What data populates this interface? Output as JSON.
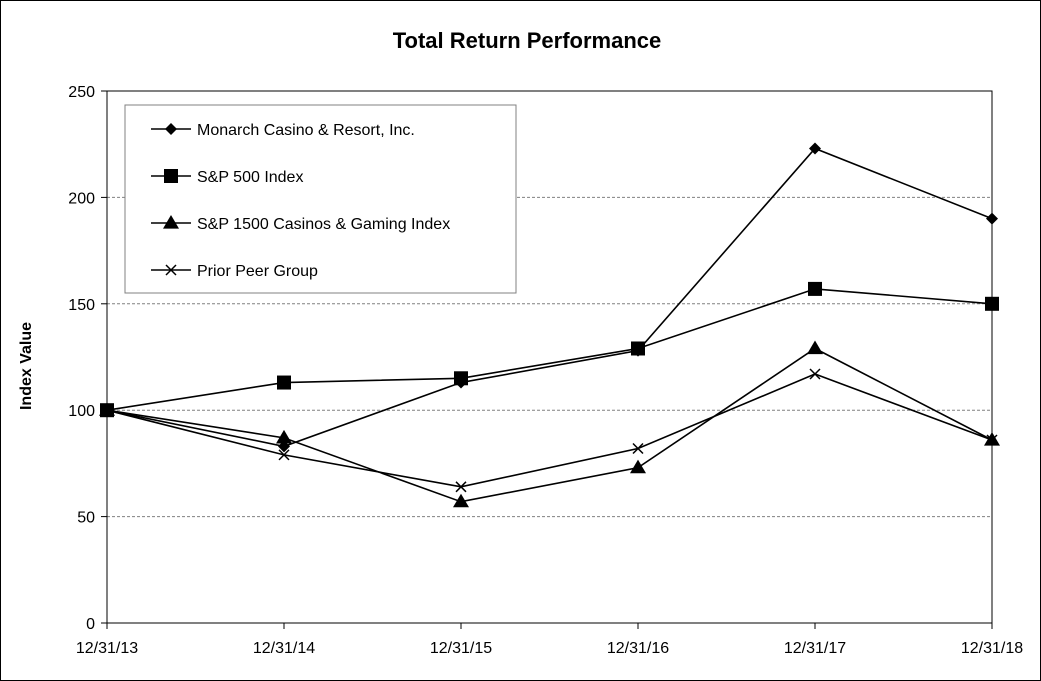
{
  "chart_data": {
    "type": "line",
    "title": "Total Return Performance",
    "xlabel": "",
    "ylabel": "Index Value",
    "x": [
      "12/31/13",
      "12/31/14",
      "12/31/15",
      "12/31/16",
      "12/31/17",
      "12/31/18"
    ],
    "ylim": [
      0,
      250
    ],
    "yticks": [
      0,
      50,
      100,
      150,
      200,
      250
    ],
    "grid": "horizontal dashed",
    "legend_position": "top-left",
    "series": [
      {
        "name": "Monarch Casino & Resort, Inc.",
        "marker": "diamond",
        "values": [
          100,
          83,
          113,
          128,
          223,
          190
        ]
      },
      {
        "name": "S&P 500 Index",
        "marker": "square",
        "values": [
          100,
          113,
          115,
          129,
          157,
          150
        ]
      },
      {
        "name": "S&P 1500 Casinos & Gaming Index",
        "marker": "triangle",
        "values": [
          100,
          87,
          57,
          73,
          129,
          86
        ]
      },
      {
        "name": "Prior Peer Group",
        "marker": "x",
        "values": [
          100,
          79,
          64,
          82,
          117,
          86
        ]
      }
    ],
    "colors": {
      "line": "#000000",
      "grid": "#808080",
      "background": "#ffffff"
    }
  }
}
